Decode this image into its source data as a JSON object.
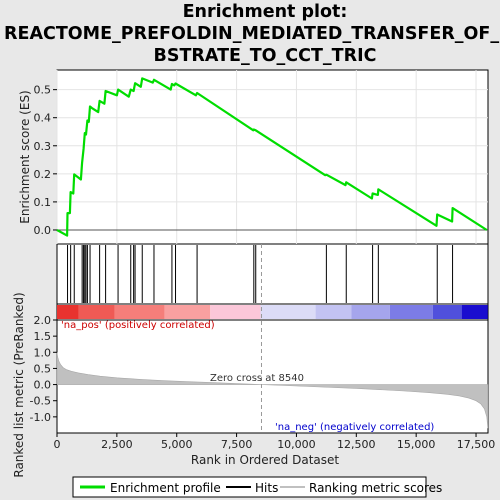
{
  "chart_data": {
    "type": "line",
    "title_lines": [
      "Enrichment plot:",
      "REACTOME_PREFOLDIN_MEDIATED_TRANSFER_OF_SU",
      "BSTRATE_TO_CCT_TRIC"
    ],
    "xlabel": "Rank in Ordered Dataset",
    "top_ylabel": "Enrichment score (ES)",
    "bottom_ylabel_lines": [
      "Ranked list metric (PreRanked)"
    ],
    "xlim": [
      0,
      18000
    ],
    "top_ylim": [
      -0.05,
      0.57
    ],
    "bottom_ylim": [
      -1.5,
      2.0
    ],
    "x_ticks": [
      0,
      2500,
      5000,
      7500,
      10000,
      12500,
      15000,
      17500
    ],
    "x_tick_labels": [
      "0",
      "2,500",
      "5,000",
      "7,500",
      "10,000",
      "12,500",
      "15,000",
      "17,500"
    ],
    "top_y_ticks": [
      0.0,
      0.1,
      0.2,
      0.3,
      0.4,
      0.5
    ],
    "top_y_tick_labels": [
      "0.0",
      "0.1",
      "0.2",
      "0.3",
      "0.4",
      "0.5"
    ],
    "bottom_y_ticks": [
      -1.0,
      -0.5,
      0.0,
      0.5,
      1.0,
      1.5,
      2.0
    ],
    "bottom_y_tick_labels": [
      "-1.0",
      "-0.5",
      "0.0",
      "0.5",
      "1.0",
      "1.5",
      "2.0"
    ],
    "enrichment_profile": {
      "name": "Enrichment profile",
      "color": "#00dd00",
      "x": [
        0,
        420,
        440,
        540,
        570,
        680,
        720,
        1000,
        1050,
        1110,
        1160,
        1210,
        1270,
        1330,
        1380,
        1450,
        1720,
        1780,
        1980,
        2030,
        2500,
        2550,
        3000,
        3080,
        3200,
        3260,
        3500,
        3560,
        4000,
        4050,
        4750,
        4800,
        4900,
        4950,
        5800,
        5850,
        8200,
        8220,
        8300,
        11200,
        11250,
        12050,
        12080,
        13150,
        13180,
        13400,
        13420,
        15850,
        15880,
        16500,
        16520,
        17950
      ],
      "y": [
        0.0,
        -0.02,
        0.06,
        0.06,
        0.135,
        0.13,
        0.198,
        0.18,
        0.24,
        0.29,
        0.345,
        0.34,
        0.39,
        0.385,
        0.44,
        0.435,
        0.42,
        0.46,
        0.45,
        0.495,
        0.48,
        0.5,
        0.475,
        0.5,
        0.495,
        0.523,
        0.51,
        0.54,
        0.525,
        0.535,
        0.5,
        0.52,
        0.515,
        0.522,
        0.48,
        0.488,
        0.355,
        0.358,
        0.355,
        0.195,
        0.197,
        0.16,
        0.17,
        0.112,
        0.13,
        0.125,
        0.145,
        0.015,
        0.055,
        0.03,
        0.078,
        0.0
      ]
    },
    "hits": {
      "name": "Hits",
      "color": "#000000",
      "x": [
        440,
        570,
        720,
        1050,
        1110,
        1160,
        1210,
        1270,
        1380,
        1780,
        2030,
        2550,
        3080,
        3200,
        3260,
        3560,
        4050,
        4800,
        4950,
        5850,
        8220,
        8300,
        11250,
        12080,
        13180,
        13420,
        15880,
        16520
      ]
    },
    "ranking_metric": {
      "name": "Ranking metric scores",
      "color": "#c0c0c0",
      "x": [
        0,
        30,
        80,
        150,
        250,
        400,
        600,
        900,
        1300,
        1800,
        2500,
        3500,
        4500,
        5500,
        6500,
        7500,
        8540,
        9500,
        10500,
        11500,
        12500,
        13500,
        14500,
        15500,
        16300,
        16800,
        17200,
        17500,
        17700,
        17850,
        17950,
        17990
      ],
      "y": [
        1.0,
        0.85,
        0.72,
        0.62,
        0.53,
        0.46,
        0.41,
        0.36,
        0.31,
        0.26,
        0.21,
        0.16,
        0.12,
        0.09,
        0.06,
        0.03,
        0.0,
        -0.03,
        -0.06,
        -0.09,
        -0.12,
        -0.16,
        -0.2,
        -0.25,
        -0.3,
        -0.35,
        -0.42,
        -0.5,
        -0.6,
        -0.75,
        -1.0,
        -1.35
      ]
    },
    "zero_cross": 8540,
    "zero_cross_label": "Zero cross at 8540",
    "pos_label": "'na_pos' (positively correlated)",
    "neg_label": "'na_neg' (negatively correlated)",
    "pos_label_color": "#cc0000",
    "neg_label_color": "#0000cc",
    "colorbar_segments": [
      {
        "start": 0,
        "end": 900,
        "color": "#e8332f"
      },
      {
        "start": 900,
        "end": 2400,
        "color": "#ef5a55"
      },
      {
        "start": 2400,
        "end": 4500,
        "color": "#f57e7a"
      },
      {
        "start": 4500,
        "end": 6400,
        "color": "#f9a0a0"
      },
      {
        "start": 6400,
        "end": 8500,
        "color": "#fbc7d9"
      },
      {
        "start": 8500,
        "end": 10800,
        "color": "#dcdcf7"
      },
      {
        "start": 10800,
        "end": 12300,
        "color": "#c3c3f2"
      },
      {
        "start": 12300,
        "end": 13900,
        "color": "#a5a5ec"
      },
      {
        "start": 13900,
        "end": 15700,
        "color": "#7c7ce6"
      },
      {
        "start": 15700,
        "end": 16900,
        "color": "#5050dc"
      },
      {
        "start": 16900,
        "end": 17990,
        "color": "#1a0dcf"
      }
    ],
    "legend": [
      {
        "label": "Enrichment profile",
        "color": "#00dd00"
      },
      {
        "label": "Hits",
        "color": "#000000"
      },
      {
        "label": "Ranking metric scores",
        "color": "#c0c0c0"
      }
    ]
  }
}
